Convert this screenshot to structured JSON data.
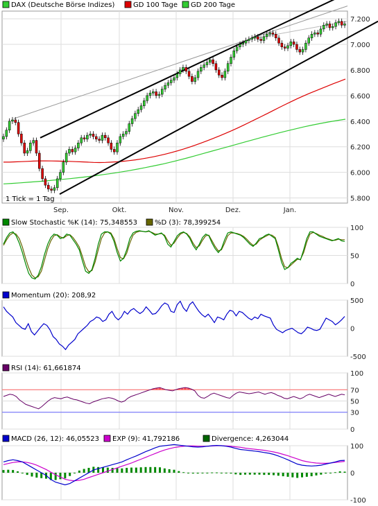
{
  "chart_data": [
    {
      "panel": "price",
      "type": "candlestick",
      "title": "DAX (Deutsche Börse Indizes)",
      "legend": [
        {
          "label": "DAX (Deutsche Börse Indizes)",
          "color": "#33cc33"
        },
        {
          "label": "GD 100 Tage",
          "color": "#dd0000"
        },
        {
          "label": "GD 200 Tage",
          "color": "#33cc33"
        }
      ],
      "note": "1 Tick = 1 Tag",
      "x_labels": [
        "Sep.",
        "Okt.",
        "Nov.",
        "Dez.",
        "Jan."
      ],
      "y_ticks": [
        "5.800",
        "6.000",
        "6.200",
        "6.400",
        "6.600",
        "6.800",
        "7.000",
        "7.200"
      ],
      "ylim": [
        5760,
        7260
      ],
      "close": [
        6280,
        6330,
        6400,
        6410,
        6390,
        6300,
        6230,
        6150,
        6170,
        6230,
        6250,
        6150,
        6030,
        5950,
        5900,
        5870,
        5860,
        5880,
        5950,
        6000,
        6080,
        6150,
        6180,
        6160,
        6190,
        6230,
        6270,
        6260,
        6290,
        6300,
        6280,
        6260,
        6250,
        6290,
        6270,
        6230,
        6180,
        6160,
        6230,
        6280,
        6300,
        6320,
        6380,
        6420,
        6460,
        6490,
        6520,
        6560,
        6600,
        6620,
        6630,
        6600,
        6610,
        6650,
        6680,
        6700,
        6720,
        6740,
        6770,
        6800,
        6820,
        6790,
        6750,
        6710,
        6740,
        6790,
        6820,
        6840,
        6860,
        6880,
        6850,
        6800,
        6760,
        6740,
        6790,
        6850,
        6900,
        6950,
        6980,
        7000,
        7010,
        7030,
        7040,
        7050,
        7060,
        7040,
        7030,
        7060,
        7080,
        7090,
        7080,
        7050,
        7010,
        6980,
        6970,
        6990,
        7020,
        7000,
        6960,
        6940,
        6960,
        7010,
        7050,
        7080,
        7090,
        7080,
        7120,
        7150,
        7160,
        7130,
        7140,
        7170,
        7180,
        7150,
        7160
      ],
      "gd100": [
        6080,
        6080,
        6082,
        6084,
        6086,
        6088,
        6090,
        6090,
        6089,
        6088,
        6087,
        6086,
        6084,
        6082,
        6080,
        6078,
        6077,
        6078,
        6080,
        6083,
        6087,
        6092,
        6098,
        6105,
        6113,
        6122,
        6132,
        6143,
        6155,
        6168,
        6182,
        6197,
        6213,
        6230,
        6248,
        6266,
        6285,
        6305,
        6325,
        6346,
        6368,
        6391,
        6414,
        6437,
        6460,
        6484,
        6508,
        6531,
        6554,
        6576,
        6597,
        6617,
        6636,
        6655,
        6674,
        6693,
        6711,
        6729
      ],
      "gd200": [
        5910,
        5914,
        5918,
        5923,
        5928,
        5933,
        5939,
        5945,
        5951,
        5958,
        5966,
        5974,
        5983,
        5992,
        6002,
        6013,
        6025,
        6037,
        6050,
        6064,
        6079,
        6095,
        6112,
        6130,
        6148,
        6166,
        6184,
        6202,
        6220,
        6238,
        6256,
        6274,
        6291,
        6308,
        6324,
        6340,
        6355,
        6369,
        6382,
        6394,
        6405,
        6415
      ],
      "trend_lines": "upper and lower black channel lines, grey long-term trend line"
    },
    {
      "panel": "stochastic",
      "type": "line",
      "legend": [
        {
          "label": "Slow Stochastic %K (14): 75,348553",
          "color": "#008800"
        },
        {
          "label": "%D (3): 78,399254",
          "color": "#666600"
        }
      ],
      "y_ticks": [
        "0",
        "50",
        "100"
      ],
      "ylim": [
        0,
        100
      ],
      "k": [
        70,
        82,
        90,
        92,
        85,
        72,
        55,
        35,
        18,
        10,
        8,
        15,
        30,
        52,
        70,
        82,
        88,
        86,
        80,
        82,
        88,
        86,
        78,
        70,
        60,
        40,
        22,
        18,
        25,
        45,
        70,
        88,
        92,
        92,
        88,
        75,
        55,
        40,
        45,
        60,
        80,
        90,
        93,
        94,
        93,
        92,
        94,
        90,
        86,
        88,
        90,
        84,
        70,
        65,
        75,
        85,
        90,
        92,
        88,
        80,
        68,
        60,
        70,
        82,
        88,
        85,
        72,
        62,
        55,
        62,
        78,
        90,
        92,
        90,
        88,
        86,
        82,
        76,
        70,
        66,
        72,
        80,
        82,
        86,
        88,
        84,
        80,
        60,
        38,
        25,
        28,
        36,
        40,
        45,
        42,
        60,
        80,
        92,
        92,
        88,
        84,
        82,
        80,
        78,
        76,
        78,
        80,
        76,
        75
      ],
      "d": [
        68,
        78,
        86,
        90,
        88,
        80,
        65,
        45,
        28,
        15,
        10,
        12,
        22,
        42,
        62,
        76,
        85,
        87,
        83,
        81,
        85,
        87,
        82,
        74,
        65,
        48,
        30,
        21,
        23,
        38,
        60,
        80,
        90,
        92,
        90,
        80,
        62,
        46,
        44,
        54,
        72,
        86,
        91,
        93,
        93,
        92,
        93,
        91,
        88,
        88,
        89,
        86,
        76,
        68,
        72,
        81,
        88,
        91,
        89,
        83,
        72,
        64,
        67,
        77,
        85,
        86,
        76,
        66,
        58,
        60,
        72,
        85,
        90,
        90,
        89,
        87,
        84,
        79,
        73,
        68,
        70,
        77,
        81,
        84,
        87,
        86,
        82,
        66,
        45,
        30,
        28,
        33,
        38,
        43,
        43,
        55,
        74,
        88,
        91,
        89,
        86,
        84,
        81,
        79,
        77,
        77,
        79,
        78,
        78
      ]
    },
    {
      "panel": "momentum",
      "type": "line",
      "legend": [
        {
          "label": "Momentum (20): 208,92",
          "color": "#0000cc"
        }
      ],
      "y_ticks": [
        "-500",
        "0",
        "500"
      ],
      "ylim": [
        -500,
        500
      ],
      "values": [
        380,
        300,
        250,
        200,
        100,
        50,
        0,
        -20,
        80,
        -60,
        -120,
        -50,
        20,
        80,
        50,
        -30,
        -150,
        -200,
        -280,
        -320,
        -380,
        -300,
        -250,
        -200,
        -100,
        -50,
        0,
        50,
        120,
        150,
        200,
        180,
        120,
        150,
        250,
        300,
        200,
        150,
        200,
        300,
        250,
        320,
        350,
        300,
        260,
        300,
        380,
        320,
        250,
        260,
        320,
        400,
        450,
        420,
        300,
        280,
        420,
        480,
        360,
        300,
        420,
        470,
        380,
        300,
        240,
        200,
        250,
        180,
        100,
        200,
        180,
        150,
        250,
        320,
        300,
        220,
        300,
        280,
        230,
        180,
        150,
        200,
        170,
        250,
        220,
        200,
        180,
        60,
        -20,
        -50,
        -80,
        -40,
        -20,
        0,
        -40,
        -80,
        -100,
        -50,
        20,
        0,
        -30,
        -40,
        -20,
        80,
        180,
        150,
        120,
        60,
        100,
        150,
        210
      ]
    },
    {
      "panel": "rsi",
      "type": "line",
      "legend": [
        {
          "label": "RSI (14): 61,661874",
          "color": "#660066"
        }
      ],
      "y_ticks": [
        "0",
        "30",
        "50",
        "70",
        "100"
      ],
      "ref_lines": [
        70,
        30
      ],
      "ylim": [
        0,
        100
      ],
      "values": [
        58,
        60,
        62,
        61,
        58,
        52,
        48,
        44,
        42,
        40,
        38,
        36,
        40,
        45,
        50,
        54,
        56,
        55,
        54,
        56,
        57,
        55,
        53,
        52,
        50,
        48,
        46,
        45,
        48,
        50,
        52,
        54,
        55,
        56,
        55,
        53,
        50,
        48,
        50,
        55,
        58,
        60,
        62,
        64,
        66,
        68,
        70,
        72,
        73,
        74,
        72,
        70,
        69,
        68,
        70,
        72,
        73,
        74,
        73,
        71,
        68,
        60,
        56,
        55,
        58,
        62,
        64,
        62,
        60,
        58,
        56,
        55,
        60,
        64,
        66,
        65,
        64,
        63,
        64,
        65,
        66,
        64,
        62,
        64,
        65,
        63,
        60,
        58,
        55,
        54,
        56,
        58,
        56,
        54,
        56,
        60,
        62,
        60,
        58,
        56,
        58,
        60,
        62,
        60,
        58,
        60,
        62,
        61
      ],
      "overbought_segments": "fills above 70"
    },
    {
      "panel": "macd",
      "type": "line+bar",
      "legend": [
        {
          "label": "MACD (26, 12): 46,05523",
          "color": "#0000cc"
        },
        {
          "label": "EXP (9): 41,792186",
          "color": "#cc00cc"
        },
        {
          "label": "Divergence: 4,263044",
          "color": "#006600"
        }
      ],
      "y_ticks": [
        "-100",
        "0",
        "100"
      ],
      "ylim": [
        -100,
        100
      ],
      "macd": [
        40,
        45,
        48,
        45,
        40,
        30,
        20,
        10,
        0,
        -10,
        -25,
        -35,
        -40,
        -45,
        -40,
        -30,
        -20,
        -10,
        0,
        10,
        15,
        20,
        25,
        30,
        35,
        40,
        48,
        55,
        62,
        70,
        78,
        85,
        92,
        98,
        100,
        102,
        104,
        102,
        100,
        98,
        96,
        95,
        96,
        98,
        100,
        101,
        100,
        98,
        95,
        90,
        86,
        84,
        82,
        80,
        78,
        75,
        72,
        68,
        62,
        55,
        48,
        40,
        32,
        28,
        26,
        25,
        26,
        28,
        32,
        36,
        40,
        45,
        46
      ],
      "exp": [
        30,
        34,
        38,
        40,
        40,
        38,
        34,
        28,
        20,
        12,
        2,
        -8,
        -16,
        -24,
        -28,
        -30,
        -28,
        -24,
        -18,
        -12,
        -6,
        0,
        6,
        12,
        18,
        24,
        30,
        36,
        43,
        50,
        57,
        64,
        71,
        78,
        84,
        89,
        93,
        96,
        98,
        99,
        99,
        98,
        98,
        98,
        99,
        100,
        100,
        99,
        98,
        96,
        94,
        91,
        89,
        87,
        85,
        83,
        80,
        77,
        73,
        68,
        63,
        57,
        51,
        45,
        41,
        38,
        36,
        35,
        35,
        36,
        38,
        40,
        42
      ],
      "divergence": [
        10,
        11,
        10,
        5,
        0,
        -8,
        -14,
        -18,
        -20,
        -22,
        -27,
        -27,
        -24,
        -21,
        -12,
        0,
        8,
        14,
        18,
        22,
        21,
        20,
        19,
        18,
        17,
        16,
        18,
        19,
        19,
        20,
        21,
        21,
        21,
        20,
        16,
        13,
        11,
        6,
        2,
        -1,
        -3,
        -3,
        -2,
        0,
        1,
        1,
        0,
        -1,
        -3,
        -6,
        -8,
        -7,
        -7,
        -7,
        -7,
        -8,
        -8,
        -9,
        -11,
        -13,
        -15,
        -17,
        -19,
        -17,
        -15,
        -13,
        -10,
        -7,
        -3,
        0,
        2,
        5,
        4
      ]
    }
  ]
}
